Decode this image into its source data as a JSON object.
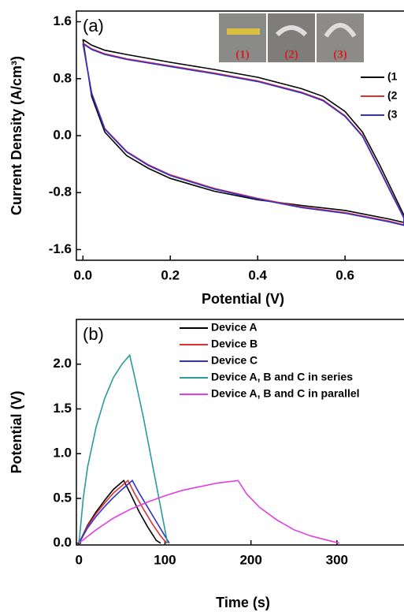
{
  "chart_data": [
    {
      "type": "line",
      "annotation": "(a)",
      "x_label": "Potential (V)",
      "y_label": "Current Density (A/cm³)",
      "xlim": [
        -0.015,
        0.735
      ],
      "ylim": [
        -1.75,
        1.75
      ],
      "xticks": [
        {
          "value": 0,
          "label": "0.0"
        },
        0.2,
        0.4,
        0.6
      ],
      "yticks": [
        -1.6,
        -0.8,
        {
          "value": 0,
          "label": "0.0"
        },
        0.8,
        1.6
      ],
      "inset_labels": [
        "(1)",
        "(2)",
        "(3)"
      ],
      "series": [
        {
          "name": "(1",
          "color": "#000000",
          "x": [
            0,
            0.02,
            0.05,
            0.1,
            0.2,
            0.3,
            0.4,
            0.5,
            0.55,
            0.6,
            0.64,
            0.68,
            0.71,
            0.735,
            0.735,
            0.7,
            0.6,
            0.5,
            0.4,
            0.3,
            0.2,
            0.15,
            0.1,
            0.05,
            0.02,
            0
          ],
          "values": [
            1.35,
            1.27,
            1.2,
            1.14,
            1.03,
            0.93,
            0.82,
            0.66,
            0.55,
            0.34,
            0.05,
            -0.42,
            -0.8,
            -1.12,
            -1.22,
            -1.17,
            -1.05,
            -0.98,
            -0.9,
            -0.78,
            -0.6,
            -0.46,
            -0.28,
            0.05,
            0.55,
            1.35
          ]
        },
        {
          "name": "(2",
          "color": "#e03030",
          "x": [
            0,
            0.02,
            0.05,
            0.1,
            0.2,
            0.3,
            0.4,
            0.5,
            0.55,
            0.6,
            0.64,
            0.68,
            0.71,
            0.735,
            0.735,
            0.7,
            0.6,
            0.5,
            0.4,
            0.3,
            0.2,
            0.15,
            0.1,
            0.05,
            0.02,
            0
          ],
          "values": [
            1.3,
            1.22,
            1.15,
            1.08,
            0.98,
            0.88,
            0.77,
            0.61,
            0.5,
            0.28,
            0.0,
            -0.48,
            -0.85,
            -1.15,
            -1.25,
            -1.2,
            -1.08,
            -1.0,
            -0.88,
            -0.74,
            -0.55,
            -0.41,
            -0.22,
            0.1,
            0.6,
            1.3
          ]
        },
        {
          "name": "(3",
          "color": "#3030d0",
          "x": [
            0,
            0.02,
            0.05,
            0.1,
            0.2,
            0.3,
            0.4,
            0.5,
            0.55,
            0.6,
            0.64,
            0.68,
            0.71,
            0.735,
            0.735,
            0.7,
            0.6,
            0.5,
            0.4,
            0.3,
            0.2,
            0.15,
            0.1,
            0.05,
            0.02,
            0
          ],
          "values": [
            1.29,
            1.21,
            1.14,
            1.07,
            0.97,
            0.87,
            0.76,
            0.6,
            0.49,
            0.27,
            -0.01,
            -0.49,
            -0.86,
            -1.16,
            -1.26,
            -1.21,
            -1.09,
            -1.01,
            -0.89,
            -0.75,
            -0.56,
            -0.42,
            -0.23,
            0.09,
            0.59,
            1.29
          ]
        }
      ]
    },
    {
      "type": "line",
      "annotation": "(b)",
      "x_label": "Time (s)",
      "y_label": "Potential (V)",
      "xlim": [
        -3,
        378
      ],
      "ylim": [
        -0.02,
        2.5
      ],
      "xticks": [
        0,
        100,
        200,
        300
      ],
      "yticks": [
        {
          "value": 0,
          "label": "0.0"
        },
        0.5,
        {
          "value": 1,
          "label": "1.0"
        },
        1.5,
        {
          "value": 2,
          "label": "2.0"
        }
      ],
      "series": [
        {
          "name": "Device A",
          "color": "#000000",
          "x": [
            0,
            10,
            20,
            30,
            40,
            52,
            60,
            70,
            80,
            90,
            95
          ],
          "values": [
            0,
            0.2,
            0.35,
            0.48,
            0.6,
            0.7,
            0.55,
            0.35,
            0.18,
            0.03,
            0
          ]
        },
        {
          "name": "Device B",
          "color": "#e03030",
          "x": [
            0,
            10,
            20,
            30,
            40,
            57,
            65,
            75,
            85,
            95,
            102
          ],
          "values": [
            0,
            0.19,
            0.33,
            0.45,
            0.56,
            0.7,
            0.55,
            0.38,
            0.22,
            0.08,
            0
          ]
        },
        {
          "name": "Device C",
          "color": "#3030d0",
          "x": [
            0,
            10,
            20,
            30,
            40,
            50,
            62,
            70,
            80,
            90,
            100,
            105
          ],
          "values": [
            0,
            0.17,
            0.3,
            0.41,
            0.51,
            0.6,
            0.7,
            0.56,
            0.4,
            0.24,
            0.08,
            0
          ]
        },
        {
          "name": "Device A, B and C in series",
          "color": "#2a9a9a",
          "x": [
            0,
            5,
            10,
            20,
            30,
            40,
            50,
            59,
            65,
            75,
            85,
            95,
            103
          ],
          "values": [
            0,
            0.5,
            0.85,
            1.3,
            1.62,
            1.85,
            2.0,
            2.1,
            1.85,
            1.4,
            0.9,
            0.4,
            0
          ]
        },
        {
          "name": "Device A, B and C in parallel",
          "color": "#e040e0",
          "x": [
            0,
            20,
            40,
            60,
            80,
            100,
            120,
            140,
            160,
            185,
            195,
            210,
            230,
            250,
            270,
            290,
            303
          ],
          "values": [
            0,
            0.15,
            0.28,
            0.38,
            0.46,
            0.53,
            0.59,
            0.63,
            0.67,
            0.7,
            0.55,
            0.4,
            0.26,
            0.15,
            0.08,
            0.03,
            0
          ]
        }
      ]
    }
  ]
}
